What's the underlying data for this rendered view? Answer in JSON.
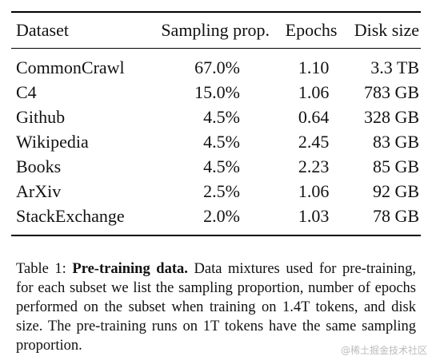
{
  "table": {
    "headers": {
      "dataset": "Dataset",
      "sampling": "Sampling prop.",
      "epochs": "Epochs",
      "disk": "Disk size"
    },
    "rows": [
      {
        "dataset": "CommonCrawl",
        "sampling": "67.0%",
        "epochs": "1.10",
        "disk": "3.3 TB"
      },
      {
        "dataset": "C4",
        "sampling": "15.0%",
        "epochs": "1.06",
        "disk": "783 GB"
      },
      {
        "dataset": "Github",
        "sampling": "4.5%",
        "epochs": "0.64",
        "disk": "328 GB"
      },
      {
        "dataset": "Wikipedia",
        "sampling": "4.5%",
        "epochs": "2.45",
        "disk": "83 GB"
      },
      {
        "dataset": "Books",
        "sampling": "4.5%",
        "epochs": "2.23",
        "disk": "85 GB"
      },
      {
        "dataset": "ArXiv",
        "sampling": "2.5%",
        "epochs": "1.06",
        "disk": "92 GB"
      },
      {
        "dataset": "StackExchange",
        "sampling": "2.0%",
        "epochs": "1.03",
        "disk": "78 GB"
      }
    ]
  },
  "caption": {
    "label": "Table 1: ",
    "title": "Pre-training data.",
    "text": " Data mixtures used for pre-training, for each subset we list the sampling proportion, number of epochs performed on the subset when training on 1.4T tokens, and disk size. The pre-training runs on 1T tokens have the same sampling proportion."
  },
  "watermark": "@稀土掘金技术社区"
}
